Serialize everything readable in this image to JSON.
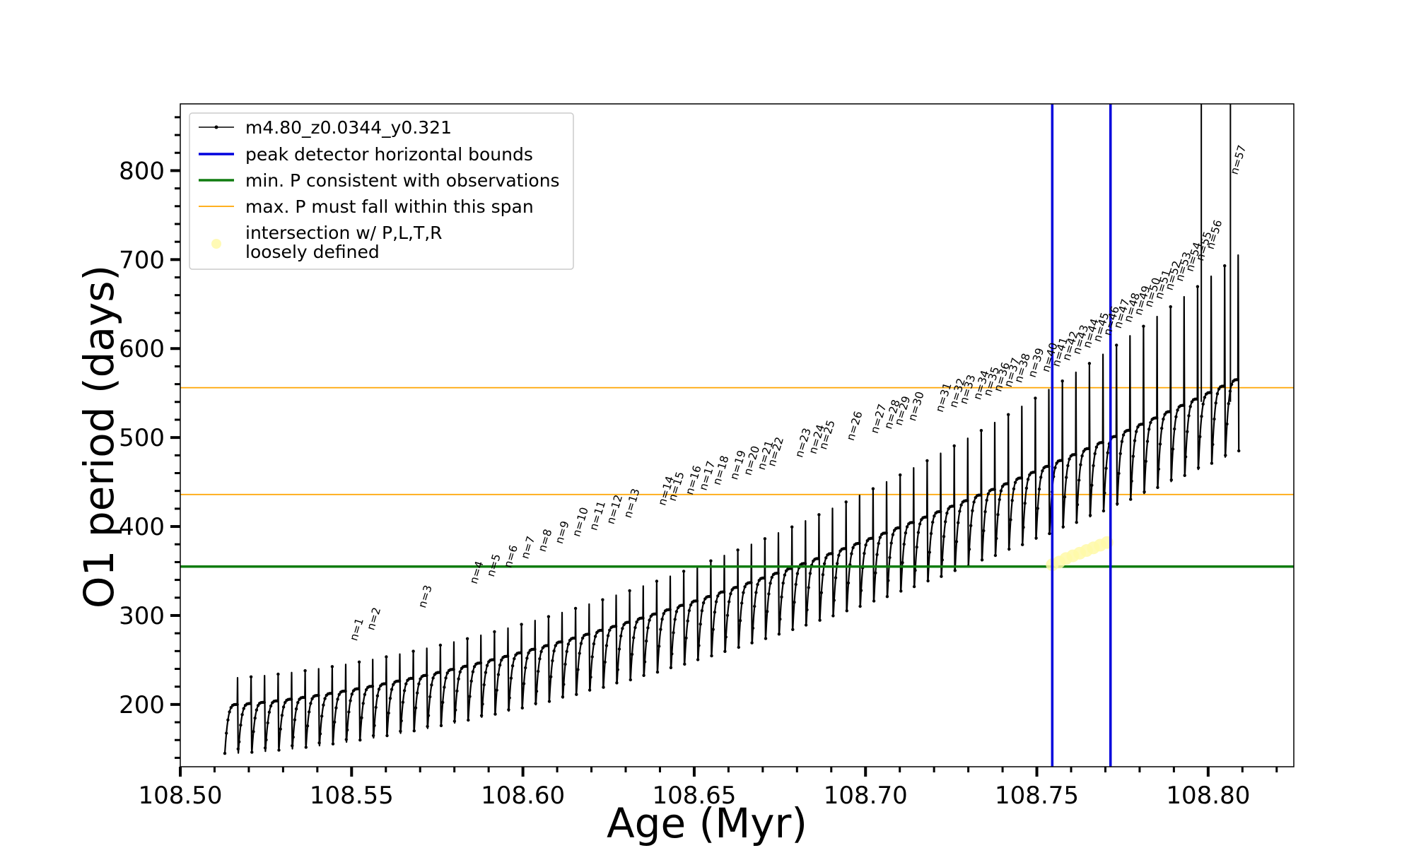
{
  "chart_data": {
    "type": "line",
    "xlabel": "Age (Myr)",
    "ylabel": "O1 period (days)",
    "xlim": [
      108.5,
      108.825
    ],
    "ylim": [
      130,
      875
    ],
    "xticks": [
      108.5,
      108.55,
      108.6,
      108.65,
      108.7,
      108.75,
      108.8
    ],
    "xtick_labels": [
      "108.50",
      "108.55",
      "108.60",
      "108.65",
      "108.70",
      "108.75",
      "108.80"
    ],
    "yticks": [
      200,
      300,
      400,
      500,
      600,
      700,
      800
    ],
    "ytick_labels": [
      "200",
      "300",
      "400",
      "500",
      "600",
      "700",
      "800"
    ],
    "grid": false,
    "legend_position": "top-left",
    "legend": [
      {
        "label": "m4.80_z0.0344_y0.321",
        "style": "line-with-dot",
        "color": "#000000"
      },
      {
        "label": "peak detector horizontal bounds",
        "style": "line",
        "color": "#0000dd"
      },
      {
        "label": "min. P consistent with observations",
        "style": "line",
        "color": "#107c10"
      },
      {
        "label": "max. P must fall within this span",
        "style": "line",
        "color": "#ffa500"
      },
      {
        "label": "intersection w/ P,L,T,R",
        "label_line2": "loosely defined",
        "style": "marker",
        "color": "#fff9a8"
      }
    ],
    "series": [
      {
        "name": "m4.80_z0.0344_y0.321",
        "color": "#000000",
        "start_age": 108.513,
        "end_age": 108.809,
        "pulse_count": 75,
        "start_low_period": 145,
        "end_low_period": 480,
        "start_high_period": 200,
        "end_high_period": 565
      }
    ],
    "reference_lines": {
      "peak_detector_bounds_x": [
        108.7545,
        108.7715
      ],
      "min_period_y": 355,
      "max_period_span_y": [
        436,
        556
      ],
      "tall_spikes_x": [
        108.798,
        108.8065
      ]
    },
    "intersection_points": [
      {
        "x": 108.7545,
        "y": 357
      },
      {
        "x": 108.7565,
        "y": 360
      },
      {
        "x": 108.7585,
        "y": 364
      },
      {
        "x": 108.7605,
        "y": 367
      },
      {
        "x": 108.7625,
        "y": 370
      },
      {
        "x": 108.7645,
        "y": 373
      },
      {
        "x": 108.7665,
        "y": 376
      },
      {
        "x": 108.7685,
        "y": 379
      },
      {
        "x": 108.7705,
        "y": 382
      }
    ],
    "peaks": [
      {
        "label": "n=1",
        "x": 108.5515,
        "y": 266
      },
      {
        "label": "n=2",
        "x": 108.5565,
        "y": 278
      },
      {
        "label": "n=3",
        "x": 108.5715,
        "y": 303
      },
      {
        "label": "n=4",
        "x": 108.5865,
        "y": 330
      },
      {
        "label": "n=5",
        "x": 108.5915,
        "y": 338
      },
      {
        "label": "n=6",
        "x": 108.5965,
        "y": 348
      },
      {
        "label": "n=7",
        "x": 108.6015,
        "y": 358
      },
      {
        "label": "n=8",
        "x": 108.6065,
        "y": 366
      },
      {
        "label": "n=9",
        "x": 108.6115,
        "y": 375
      },
      {
        "label": "n=10",
        "x": 108.6165,
        "y": 383
      },
      {
        "label": "n=11",
        "x": 108.6215,
        "y": 390
      },
      {
        "label": "n=12",
        "x": 108.6265,
        "y": 397
      },
      {
        "label": "n=13",
        "x": 108.6315,
        "y": 404
      },
      {
        "label": "n=14",
        "x": 108.6415,
        "y": 418
      },
      {
        "label": "n=15",
        "x": 108.6445,
        "y": 423
      },
      {
        "label": "n=16",
        "x": 108.6495,
        "y": 430
      },
      {
        "label": "n=17",
        "x": 108.6535,
        "y": 435
      },
      {
        "label": "n=18",
        "x": 108.6575,
        "y": 441
      },
      {
        "label": "n=19",
        "x": 108.6625,
        "y": 447
      },
      {
        "label": "n=20",
        "x": 108.6665,
        "y": 452
      },
      {
        "label": "n=21",
        "x": 108.6705,
        "y": 458
      },
      {
        "label": "n=22",
        "x": 108.6735,
        "y": 462
      },
      {
        "label": "n=23",
        "x": 108.6815,
        "y": 472
      },
      {
        "label": "n=24",
        "x": 108.6855,
        "y": 476
      },
      {
        "label": "n=25",
        "x": 108.6885,
        "y": 481
      },
      {
        "label": "n=26",
        "x": 108.6965,
        "y": 491
      },
      {
        "label": "n=27",
        "x": 108.7035,
        "y": 499
      },
      {
        "label": "n=28",
        "x": 108.7075,
        "y": 504
      },
      {
        "label": "n=29",
        "x": 108.7105,
        "y": 508
      },
      {
        "label": "n=30",
        "x": 108.7145,
        "y": 513
      },
      {
        "label": "n=31",
        "x": 108.7225,
        "y": 523
      },
      {
        "label": "n=32",
        "x": 108.7265,
        "y": 528
      },
      {
        "label": "n=33",
        "x": 108.7295,
        "y": 532
      },
      {
        "label": "n=34",
        "x": 108.7335,
        "y": 537
      },
      {
        "label": "n=35",
        "x": 108.7365,
        "y": 541
      },
      {
        "label": "n=36",
        "x": 108.7395,
        "y": 546
      },
      {
        "label": "n=37",
        "x": 108.7425,
        "y": 551
      },
      {
        "label": "n=38",
        "x": 108.7455,
        "y": 556
      },
      {
        "label": "n=39",
        "x": 108.7495,
        "y": 562
      },
      {
        "label": "n=40",
        "x": 108.7535,
        "y": 568
      },
      {
        "label": "n=41",
        "x": 108.7565,
        "y": 574
      },
      {
        "label": "n=42",
        "x": 108.7595,
        "y": 581
      },
      {
        "label": "n=43",
        "x": 108.7625,
        "y": 588
      },
      {
        "label": "n=44",
        "x": 108.7655,
        "y": 595
      },
      {
        "label": "n=45",
        "x": 108.7685,
        "y": 602
      },
      {
        "label": "n=46",
        "x": 108.7715,
        "y": 609
      },
      {
        "label": "n=47",
        "x": 108.7745,
        "y": 617
      },
      {
        "label": "n=48",
        "x": 108.7775,
        "y": 624
      },
      {
        "label": "n=49",
        "x": 108.7805,
        "y": 632
      },
      {
        "label": "n=50",
        "x": 108.7835,
        "y": 641
      },
      {
        "label": "n=51",
        "x": 108.7865,
        "y": 650
      },
      {
        "label": "n=52",
        "x": 108.7895,
        "y": 660
      },
      {
        "label": "n=53",
        "x": 108.7925,
        "y": 670
      },
      {
        "label": "n=54",
        "x": 108.7955,
        "y": 681
      },
      {
        "label": "n=55",
        "x": 108.7985,
        "y": 693
      },
      {
        "label": "n=56",
        "x": 108.8015,
        "y": 706
      },
      {
        "label": "n=57",
        "x": 108.8085,
        "y": 790
      }
    ]
  }
}
